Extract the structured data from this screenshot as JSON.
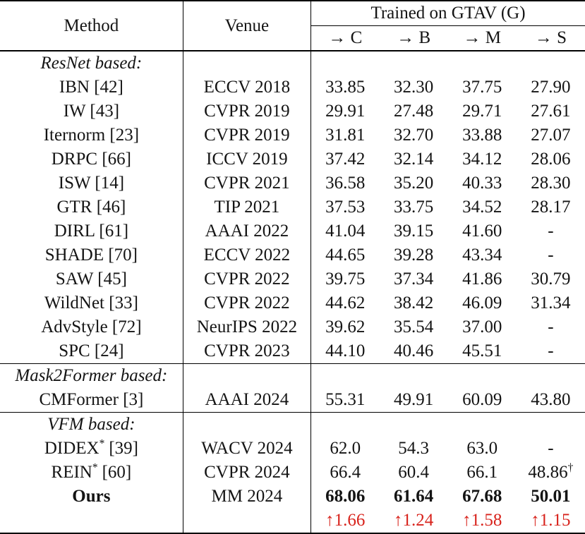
{
  "table": {
    "colors": {
      "accent_red": "#d8231c",
      "text": "#141414",
      "border": "#000000"
    },
    "header": {
      "method": "Method",
      "venue": "Venue",
      "group": "Trained on GTAV (G)",
      "subcolumns": [
        "→ C",
        "→ B",
        "→ M",
        "→ S"
      ]
    },
    "rows": [
      {
        "type": "section",
        "label": "ResNet based:"
      },
      {
        "type": "data",
        "method": "IBN [42]",
        "venue": "ECCV 2018",
        "values": [
          "33.85",
          "32.30",
          "37.75",
          "27.90"
        ]
      },
      {
        "type": "data",
        "method": "IW [43]",
        "venue": "CVPR 2019",
        "values": [
          "29.91",
          "27.48",
          "29.71",
          "27.61"
        ]
      },
      {
        "type": "data",
        "method": "Iternorm [23]",
        "venue": "CVPR 2019",
        "values": [
          "31.81",
          "32.70",
          "33.88",
          "27.07"
        ]
      },
      {
        "type": "data",
        "method": "DRPC [66]",
        "venue": "ICCV 2019",
        "values": [
          "37.42",
          "32.14",
          "34.12",
          "28.06"
        ]
      },
      {
        "type": "data",
        "method": "ISW [14]",
        "venue": "CVPR 2021",
        "values": [
          "36.58",
          "35.20",
          "40.33",
          "28.30"
        ]
      },
      {
        "type": "data",
        "method": "GTR [46]",
        "venue": "TIP 2021",
        "values": [
          "37.53",
          "33.75",
          "34.52",
          "28.17"
        ]
      },
      {
        "type": "data",
        "method": "DIRL [61]",
        "venue": "AAAI 2022",
        "values": [
          "41.04",
          "39.15",
          "41.60",
          "-"
        ]
      },
      {
        "type": "data",
        "method": "SHADE [70]",
        "venue": "ECCV 2022",
        "values": [
          "44.65",
          "39.28",
          "43.34",
          "-"
        ]
      },
      {
        "type": "data",
        "method": "SAW [45]",
        "venue": "CVPR 2022",
        "values": [
          "39.75",
          "37.34",
          "41.86",
          "30.79"
        ]
      },
      {
        "type": "data",
        "method": "WildNet [33]",
        "venue": "CVPR 2022",
        "values": [
          "44.62",
          "38.42",
          "46.09",
          "31.34"
        ]
      },
      {
        "type": "data",
        "method": "AdvStyle [72]",
        "venue": "NeurIPS 2022",
        "values": [
          "39.62",
          "35.54",
          "37.00",
          "-"
        ]
      },
      {
        "type": "data",
        "method": "SPC [24]",
        "venue": "CVPR 2023",
        "values": [
          "44.10",
          "40.46",
          "45.51",
          "-"
        ]
      },
      {
        "type": "section",
        "label": "Mask2Former based:",
        "rule_above": true
      },
      {
        "type": "data",
        "method": "CMFormer [3]",
        "venue": "AAAI 2024",
        "values": [
          "55.31",
          "49.91",
          "60.09",
          "43.80"
        ]
      },
      {
        "type": "section",
        "label": "VFM based:",
        "rule_above": true
      },
      {
        "type": "data",
        "method": "DIDEX",
        "method_sup": "*",
        "method_ref": "[39]",
        "venue": "WACV 2024",
        "values": [
          "62.0",
          "54.3",
          "63.0",
          "-"
        ]
      },
      {
        "type": "data",
        "method": "REIN",
        "method_sup": "*",
        "method_ref": "[60]",
        "venue": "CVPR 2024",
        "values": [
          "66.4",
          "60.4",
          "66.1",
          "48.86"
        ],
        "value_sups": [
          "",
          "",
          "",
          "†"
        ]
      },
      {
        "type": "data",
        "method": "Ours",
        "venue": "MM 2024",
        "values": [
          "68.06",
          "61.64",
          "67.68",
          "50.01"
        ],
        "bold": true
      },
      {
        "type": "delta",
        "values": [
          "↑1.66",
          "↑1.24",
          "↑1.58",
          "↑1.15"
        ]
      }
    ]
  }
}
